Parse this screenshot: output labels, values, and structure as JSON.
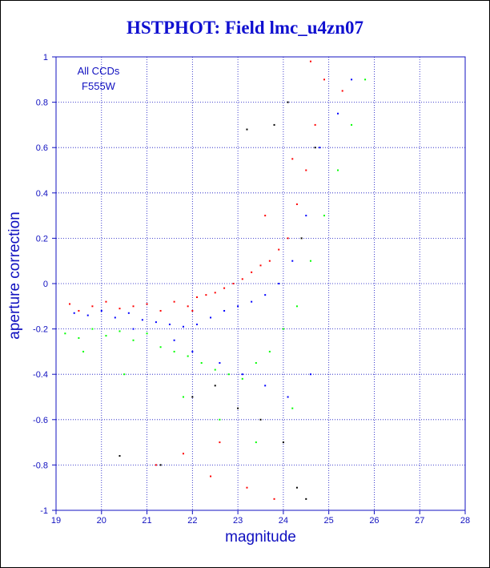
{
  "chart_data": {
    "type": "scatter",
    "title": "HSTPHOT: Field lmc_u4zn07",
    "xlabel": "magnitude",
    "ylabel": "aperture correction",
    "xlim": [
      19,
      28
    ],
    "ylim": [
      -1,
      1
    ],
    "x_ticks": [
      "19",
      "20",
      "21",
      "22",
      "23",
      "24",
      "25",
      "26",
      "27",
      "28"
    ],
    "y_ticks": [
      "-1",
      "-0.8",
      "-0.6",
      "-0.4",
      "-0.2",
      "0",
      "0.2",
      "0.4",
      "0.6",
      "0.8",
      "1"
    ],
    "grid": true,
    "annotations": [
      "All CCDs",
      "F555W"
    ],
    "series": [
      {
        "color": "#ff0000",
        "points": [
          [
            19.3,
            -0.09
          ],
          [
            19.5,
            -0.12
          ],
          [
            19.8,
            -0.1
          ],
          [
            20.1,
            -0.08
          ],
          [
            20.4,
            -0.11
          ],
          [
            20.7,
            -0.1
          ],
          [
            21.0,
            -0.09
          ],
          [
            21.3,
            -0.12
          ],
          [
            21.6,
            -0.08
          ],
          [
            21.9,
            -0.1
          ],
          [
            22.1,
            -0.06
          ],
          [
            22.3,
            -0.05
          ],
          [
            22.5,
            -0.04
          ],
          [
            22.7,
            -0.02
          ],
          [
            22.9,
            0.0
          ],
          [
            23.1,
            0.02
          ],
          [
            23.3,
            0.05
          ],
          [
            23.5,
            0.08
          ],
          [
            23.7,
            0.1
          ],
          [
            23.9,
            0.15
          ],
          [
            24.1,
            0.2
          ],
          [
            24.3,
            0.35
          ],
          [
            24.5,
            0.5
          ],
          [
            24.7,
            0.7
          ],
          [
            24.9,
            0.9
          ],
          [
            25.3,
            0.85
          ],
          [
            24.6,
            0.98
          ],
          [
            21.2,
            -0.8
          ],
          [
            21.8,
            -0.75
          ],
          [
            22.4,
            -0.85
          ],
          [
            23.2,
            -0.9
          ],
          [
            23.8,
            -0.95
          ],
          [
            22.6,
            -0.7
          ],
          [
            24.2,
            0.55
          ],
          [
            23.6,
            0.3
          ],
          [
            22.0,
            -0.12
          ]
        ]
      },
      {
        "color": "#0000ff",
        "points": [
          [
            19.4,
            -0.13
          ],
          [
            19.7,
            -0.14
          ],
          [
            20.0,
            -0.12
          ],
          [
            20.3,
            -0.15
          ],
          [
            20.6,
            -0.13
          ],
          [
            20.9,
            -0.16
          ],
          [
            21.2,
            -0.17
          ],
          [
            21.5,
            -0.18
          ],
          [
            21.8,
            -0.19
          ],
          [
            22.1,
            -0.18
          ],
          [
            22.4,
            -0.15
          ],
          [
            22.7,
            -0.12
          ],
          [
            23.0,
            -0.1
          ],
          [
            23.3,
            -0.08
          ],
          [
            23.6,
            -0.05
          ],
          [
            23.9,
            0.0
          ],
          [
            24.2,
            0.1
          ],
          [
            24.5,
            0.3
          ],
          [
            24.8,
            0.6
          ],
          [
            25.2,
            0.75
          ],
          [
            25.5,
            0.9
          ],
          [
            22.0,
            -0.3
          ],
          [
            22.6,
            -0.35
          ],
          [
            23.1,
            -0.4
          ],
          [
            23.6,
            -0.45
          ],
          [
            24.1,
            -0.5
          ],
          [
            24.6,
            -0.4
          ],
          [
            21.6,
            -0.25
          ],
          [
            20.7,
            -0.2
          ]
        ]
      },
      {
        "color": "#00ff00",
        "points": [
          [
            19.2,
            -0.22
          ],
          [
            19.5,
            -0.24
          ],
          [
            19.8,
            -0.2
          ],
          [
            20.1,
            -0.23
          ],
          [
            20.4,
            -0.21
          ],
          [
            20.7,
            -0.25
          ],
          [
            21.0,
            -0.22
          ],
          [
            21.3,
            -0.28
          ],
          [
            21.6,
            -0.3
          ],
          [
            21.9,
            -0.32
          ],
          [
            22.2,
            -0.35
          ],
          [
            22.5,
            -0.38
          ],
          [
            22.8,
            -0.4
          ],
          [
            23.1,
            -0.42
          ],
          [
            23.4,
            -0.35
          ],
          [
            23.7,
            -0.3
          ],
          [
            24.0,
            -0.2
          ],
          [
            24.3,
            -0.1
          ],
          [
            24.6,
            0.1
          ],
          [
            24.9,
            0.3
          ],
          [
            25.2,
            0.5
          ],
          [
            25.5,
            0.7
          ],
          [
            25.8,
            0.9
          ],
          [
            21.8,
            -0.5
          ],
          [
            22.6,
            -0.6
          ],
          [
            23.4,
            -0.7
          ],
          [
            24.2,
            -0.55
          ],
          [
            20.5,
            -0.4
          ],
          [
            19.6,
            -0.3
          ]
        ]
      },
      {
        "color": "#000000",
        "points": [
          [
            22.0,
            -0.5
          ],
          [
            22.5,
            -0.45
          ],
          [
            23.0,
            -0.55
          ],
          [
            23.5,
            -0.6
          ],
          [
            24.0,
            -0.7
          ],
          [
            24.3,
            -0.9
          ],
          [
            24.5,
            -0.95
          ],
          [
            23.8,
            0.7
          ],
          [
            24.1,
            0.8
          ],
          [
            24.4,
            0.2
          ],
          [
            21.3,
            -0.8
          ],
          [
            20.4,
            -0.76
          ],
          [
            24.7,
            0.6
          ],
          [
            23.2,
            0.68
          ]
        ]
      }
    ]
  }
}
